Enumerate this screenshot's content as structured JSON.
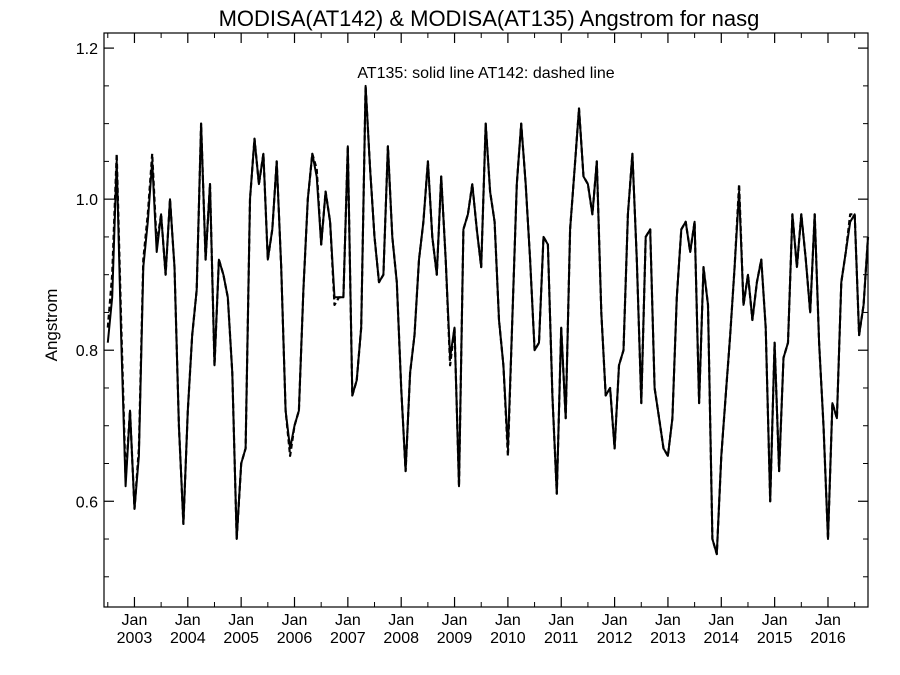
{
  "chart_data": {
    "type": "line",
    "title": "MODISA(AT142) & MODISA(AT135)  Angstrom for nasg",
    "annotation": "AT135: solid line   AT142: dashed line",
    "ylabel": "Angstrom",
    "xlabel": "",
    "ylim": [
      0.46,
      1.22
    ],
    "xlim": [
      "2002-07",
      "2016-10"
    ],
    "yticks": [
      0.6,
      0.8,
      1.0,
      1.2
    ],
    "ytick_labels": [
      "0.6",
      "0.8",
      "1.0",
      "1.2"
    ],
    "xtick_month_label": "Jan",
    "xtick_years": [
      "2003",
      "2004",
      "2005",
      "2006",
      "2007",
      "2008",
      "2009",
      "2010",
      "2011",
      "2012",
      "2013",
      "2014",
      "2015",
      "2016"
    ],
    "grid": false,
    "legend": "none",
    "series": [
      {
        "name": "AT135",
        "style": "solid",
        "color": "#000000",
        "x": [
          "2002-07",
          "2002-08",
          "2002-09",
          "2002-10",
          "2002-11",
          "2002-12",
          "2003-01",
          "2003-02",
          "2003-03",
          "2003-04",
          "2003-05",
          "2003-06",
          "2003-07",
          "2003-08",
          "2003-09",
          "2003-10",
          "2003-11",
          "2003-12",
          "2004-01",
          "2004-02",
          "2004-03",
          "2004-04",
          "2004-05",
          "2004-06",
          "2004-07",
          "2004-08",
          "2004-09",
          "2004-10",
          "2004-11",
          "2004-12",
          "2005-01",
          "2005-02",
          "2005-03",
          "2005-04",
          "2005-05",
          "2005-06",
          "2005-07",
          "2005-08",
          "2005-09",
          "2005-10",
          "2005-11",
          "2005-12",
          "2006-01",
          "2006-02",
          "2006-03",
          "2006-04",
          "2006-05",
          "2006-06",
          "2006-07",
          "2006-08",
          "2006-09",
          "2006-10",
          "2006-11",
          "2006-12",
          "2007-01",
          "2007-02",
          "2007-03",
          "2007-04",
          "2007-05",
          "2007-06",
          "2007-07",
          "2007-08",
          "2007-09",
          "2007-10",
          "2007-11",
          "2007-12",
          "2008-01",
          "2008-02",
          "2008-03",
          "2008-04",
          "2008-05",
          "2008-06",
          "2008-07",
          "2008-08",
          "2008-09",
          "2008-10",
          "2008-11",
          "2008-12",
          "2009-01",
          "2009-02",
          "2009-03",
          "2009-04",
          "2009-05",
          "2009-06",
          "2009-07",
          "2009-08",
          "2009-09",
          "2009-10",
          "2009-11",
          "2009-12",
          "2010-01",
          "2010-02",
          "2010-03",
          "2010-04",
          "2010-05",
          "2010-06",
          "2010-07",
          "2010-08",
          "2010-09",
          "2010-10",
          "2010-11",
          "2010-12",
          "2011-01",
          "2011-02",
          "2011-03",
          "2011-04",
          "2011-05",
          "2011-06",
          "2011-07",
          "2011-08",
          "2011-09",
          "2011-10",
          "2011-11",
          "2011-12",
          "2012-01",
          "2012-02",
          "2012-03",
          "2012-04",
          "2012-05",
          "2012-06",
          "2012-07",
          "2012-08",
          "2012-09",
          "2012-10",
          "2012-11",
          "2012-12",
          "2013-01",
          "2013-02",
          "2013-03",
          "2013-04",
          "2013-05",
          "2013-06",
          "2013-07",
          "2013-08",
          "2013-09",
          "2013-10",
          "2013-11",
          "2013-12",
          "2014-01",
          "2014-02",
          "2014-03",
          "2014-04",
          "2014-05",
          "2014-06",
          "2014-07",
          "2014-08",
          "2014-09",
          "2014-10",
          "2014-11",
          "2014-12",
          "2015-01",
          "2015-02",
          "2015-03",
          "2015-04",
          "2015-05",
          "2015-06",
          "2015-07",
          "2015-08",
          "2015-09",
          "2015-10",
          "2015-11",
          "2015-12",
          "2016-01",
          "2016-02",
          "2016-03",
          "2016-04",
          "2016-05",
          "2016-06",
          "2016-07",
          "2016-08",
          "2016-09",
          "2016-10"
        ],
        "y": [
          0.81,
          0.87,
          1.05,
          0.82,
          0.62,
          0.72,
          0.59,
          0.66,
          0.91,
          0.97,
          1.05,
          0.93,
          0.98,
          0.9,
          1.0,
          0.91,
          0.7,
          0.57,
          0.72,
          0.82,
          0.88,
          1.1,
          0.92,
          1.02,
          0.78,
          0.92,
          0.9,
          0.87,
          0.77,
          0.55,
          0.65,
          0.67,
          1.0,
          1.08,
          1.02,
          1.06,
          0.92,
          0.96,
          1.05,
          0.91,
          0.72,
          0.67,
          0.7,
          0.72,
          0.88,
          1.0,
          1.06,
          1.03,
          0.94,
          1.01,
          0.97,
          0.87,
          0.87,
          0.87,
          1.07,
          0.74,
          0.76,
          0.83,
          1.15,
          1.04,
          0.95,
          0.89,
          0.9,
          1.07,
          0.95,
          0.89,
          0.75,
          0.64,
          0.77,
          0.82,
          0.92,
          0.97,
          1.05,
          0.95,
          0.9,
          1.03,
          0.92,
          0.79,
          0.83,
          0.62,
          0.96,
          0.98,
          1.02,
          0.96,
          0.91,
          1.1,
          1.01,
          0.97,
          0.84,
          0.78,
          0.67,
          0.84,
          1.02,
          1.1,
          1.02,
          0.92,
          0.8,
          0.81,
          0.95,
          0.94,
          0.74,
          0.61,
          0.83,
          0.71,
          0.96,
          1.04,
          1.12,
          1.03,
          1.02,
          0.98,
          1.05,
          0.85,
          0.74,
          0.75,
          0.67,
          0.78,
          0.8,
          0.98,
          1.06,
          0.92,
          0.73,
          0.95,
          0.96,
          0.75,
          0.71,
          0.67,
          0.66,
          0.71,
          0.87,
          0.96,
          0.97,
          0.93,
          0.97,
          0.73,
          0.91,
          0.86,
          0.55,
          0.53,
          0.66,
          0.74,
          0.82,
          0.91,
          1.01,
          0.86,
          0.9,
          0.84,
          0.89,
          0.92,
          0.83,
          0.6,
          0.81,
          0.64,
          0.79,
          0.81,
          0.98,
          0.91,
          0.98,
          0.92,
          0.85,
          0.98,
          0.81,
          0.7,
          0.55,
          0.73,
          0.71,
          0.89,
          0.93,
          0.97,
          0.98,
          0.82,
          0.86,
          0.95
        ]
      },
      {
        "name": "AT142",
        "style": "dashed",
        "color": "#000000",
        "x": [
          "2002-07",
          "2002-08",
          "2002-09",
          "2002-10",
          "2002-11",
          "2002-12",
          "2003-01",
          "2003-02",
          "2003-03",
          "2003-04",
          "2003-05",
          "2003-06",
          "2003-07",
          "2003-08",
          "2003-09",
          "2003-10",
          "2003-11",
          "2003-12",
          "2004-01",
          "2004-02",
          "2004-03",
          "2004-04",
          "2004-05",
          "2004-06",
          "2004-07",
          "2004-08",
          "2004-09",
          "2004-10",
          "2004-11",
          "2004-12",
          "2005-01",
          "2005-02",
          "2005-03",
          "2005-04",
          "2005-05",
          "2005-06",
          "2005-07",
          "2005-08",
          "2005-09",
          "2005-10",
          "2005-11",
          "2005-12",
          "2006-01",
          "2006-02",
          "2006-03",
          "2006-04",
          "2006-05",
          "2006-06",
          "2006-07",
          "2006-08",
          "2006-09",
          "2006-10",
          "2006-11",
          "2006-12",
          "2007-01",
          "2007-02",
          "2007-03",
          "2007-04",
          "2007-05",
          "2007-06",
          "2007-07",
          "2007-08",
          "2007-09",
          "2007-10",
          "2007-11",
          "2007-12",
          "2008-01",
          "2008-02",
          "2008-03",
          "2008-04",
          "2008-05",
          "2008-06",
          "2008-07",
          "2008-08",
          "2008-09",
          "2008-10",
          "2008-11",
          "2008-12",
          "2009-01",
          "2009-02",
          "2009-03",
          "2009-04",
          "2009-05",
          "2009-06",
          "2009-07",
          "2009-08",
          "2009-09",
          "2009-10",
          "2009-11",
          "2009-12",
          "2010-01",
          "2010-02",
          "2010-03",
          "2010-04",
          "2010-05",
          "2010-06",
          "2010-07",
          "2010-08",
          "2010-09",
          "2010-10",
          "2010-11",
          "2010-12",
          "2011-01",
          "2011-02",
          "2011-03",
          "2011-04",
          "2011-05",
          "2011-06",
          "2011-07",
          "2011-08",
          "2011-09",
          "2011-10",
          "2011-11",
          "2011-12",
          "2012-01",
          "2012-02",
          "2012-03",
          "2012-04",
          "2012-05",
          "2012-06",
          "2012-07",
          "2012-08",
          "2012-09",
          "2012-10",
          "2012-11",
          "2012-12",
          "2013-01",
          "2013-02",
          "2013-03",
          "2013-04",
          "2013-05",
          "2013-06",
          "2013-07",
          "2013-08",
          "2013-09",
          "2013-10",
          "2013-11",
          "2013-12",
          "2014-01",
          "2014-02",
          "2014-03",
          "2014-04",
          "2014-05",
          "2014-06",
          "2014-07",
          "2014-08",
          "2014-09",
          "2014-10",
          "2014-11",
          "2014-12",
          "2015-01",
          "2015-02",
          "2015-03",
          "2015-04",
          "2015-05",
          "2015-06",
          "2015-07",
          "2015-08",
          "2015-09",
          "2015-10",
          "2015-11",
          "2015-12",
          "2016-01",
          "2016-02",
          "2016-03",
          "2016-04",
          "2016-05",
          "2016-06",
          "2016-07",
          "2016-08",
          "2016-09",
          "2016-10"
        ],
        "y": [
          0.83,
          0.9,
          1.06,
          0.84,
          0.63,
          0.72,
          0.59,
          0.67,
          0.92,
          0.98,
          1.06,
          0.94,
          0.98,
          0.9,
          1.0,
          0.91,
          0.7,
          0.57,
          0.72,
          0.82,
          0.88,
          1.1,
          0.92,
          1.02,
          0.78,
          0.92,
          0.9,
          0.87,
          0.77,
          0.55,
          0.65,
          0.67,
          1.0,
          1.08,
          1.02,
          1.06,
          0.92,
          0.96,
          1.05,
          0.91,
          0.72,
          0.66,
          0.7,
          0.72,
          0.88,
          1.0,
          1.06,
          1.04,
          0.94,
          1.01,
          0.97,
          0.86,
          0.87,
          0.87,
          1.07,
          0.74,
          0.76,
          0.83,
          1.15,
          1.04,
          0.95,
          0.89,
          0.9,
          1.07,
          0.95,
          0.89,
          0.75,
          0.64,
          0.77,
          0.82,
          0.92,
          0.97,
          1.05,
          0.95,
          0.9,
          1.03,
          0.92,
          0.78,
          0.83,
          0.62,
          0.96,
          0.98,
          1.02,
          0.96,
          0.91,
          1.1,
          1.01,
          0.97,
          0.84,
          0.78,
          0.66,
          0.84,
          1.02,
          1.1,
          1.02,
          0.92,
          0.8,
          0.81,
          0.95,
          0.94,
          0.74,
          0.61,
          0.83,
          0.71,
          0.96,
          1.04,
          1.12,
          1.03,
          1.02,
          0.98,
          1.05,
          0.85,
          0.74,
          0.75,
          0.67,
          0.78,
          0.8,
          0.98,
          1.06,
          0.92,
          0.73,
          0.95,
          0.96,
          0.75,
          0.71,
          0.67,
          0.66,
          0.71,
          0.87,
          0.96,
          0.97,
          0.93,
          0.97,
          0.73,
          0.91,
          0.86,
          0.55,
          0.53,
          0.66,
          0.74,
          0.82,
          0.91,
          1.02,
          0.86,
          0.9,
          0.84,
          0.89,
          0.92,
          0.83,
          0.6,
          0.81,
          0.64,
          0.79,
          0.81,
          0.98,
          0.91,
          0.98,
          0.92,
          0.85,
          0.98,
          0.81,
          0.7,
          0.55,
          0.73,
          0.71,
          0.89,
          0.93,
          0.98,
          0.98,
          0.82,
          0.86,
          0.95
        ]
      }
    ]
  }
}
